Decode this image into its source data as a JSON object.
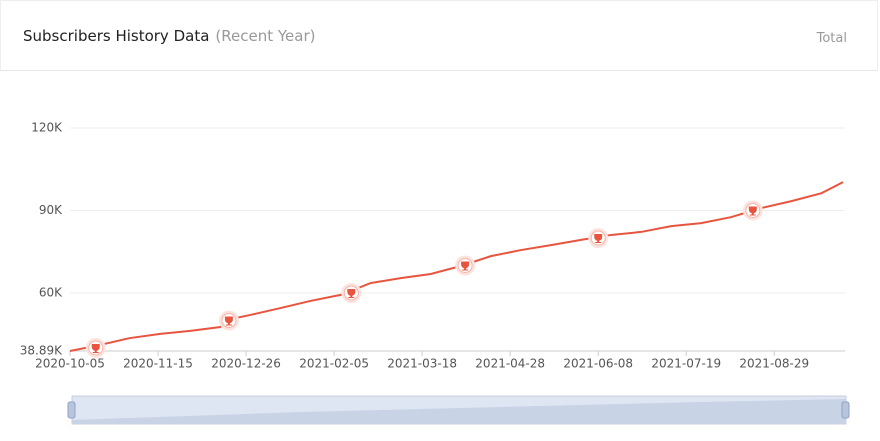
{
  "header": {
    "title": "Subscribers History Data",
    "subtitle": "(Recent Year)",
    "tab": "Total"
  },
  "chart_data": {
    "type": "line",
    "x": [
      "2020-10-05",
      "2020-10-19",
      "2020-11-02",
      "2020-11-16",
      "2020-11-30",
      "2020-12-14",
      "2020-12-17",
      "2020-12-28",
      "2021-01-11",
      "2021-01-25",
      "2021-02-08",
      "2021-02-22",
      "2021-03-08",
      "2021-03-22",
      "2021-04-05",
      "2021-04-19",
      "2021-05-03",
      "2021-05-17",
      "2021-05-31",
      "2021-06-14",
      "2021-06-28",
      "2021-07-12",
      "2021-07-26",
      "2021-08-09",
      "2021-08-23",
      "2021-09-06",
      "2021-09-20",
      "2021-09-30"
    ],
    "series": [
      {
        "color": "#e8553f",
        "values": [
          38900,
          41100,
          43600,
          45100,
          46200,
          47600,
          50200,
          52000,
          54500,
          57100,
          59300,
          63600,
          65400,
          66900,
          69800,
          73400,
          75600,
          77400,
          79300,
          81100,
          82200,
          84300,
          85400,
          87600,
          90900,
          93400,
          96300,
          100300
        ]
      }
    ],
    "markers": {
      "color": "#e8553f",
      "x": [
        "2020-10-17",
        "2020-12-18",
        "2021-02-13",
        "2021-04-07",
        "2021-06-08",
        "2021-08-19"
      ],
      "values": [
        40000,
        50000,
        60000,
        70000,
        80000,
        90000
      ]
    },
    "xlim": [
      "2020-10-05",
      "2021-09-30"
    ],
    "xticks": [
      "2020-10-05",
      "2020-11-15",
      "2020-12-26",
      "2021-02-05",
      "2021-03-18",
      "2021-04-28",
      "2021-06-08",
      "2021-07-19",
      "2021-08-29"
    ],
    "ylim": [
      38890,
      120000
    ],
    "yticks": [
      {
        "value": 38890,
        "label": "38.89K"
      },
      {
        "value": 60000,
        "label": "60K"
      },
      {
        "value": 90000,
        "label": "90K"
      },
      {
        "value": 120000,
        "label": "120K"
      }
    ],
    "grid": true
  }
}
